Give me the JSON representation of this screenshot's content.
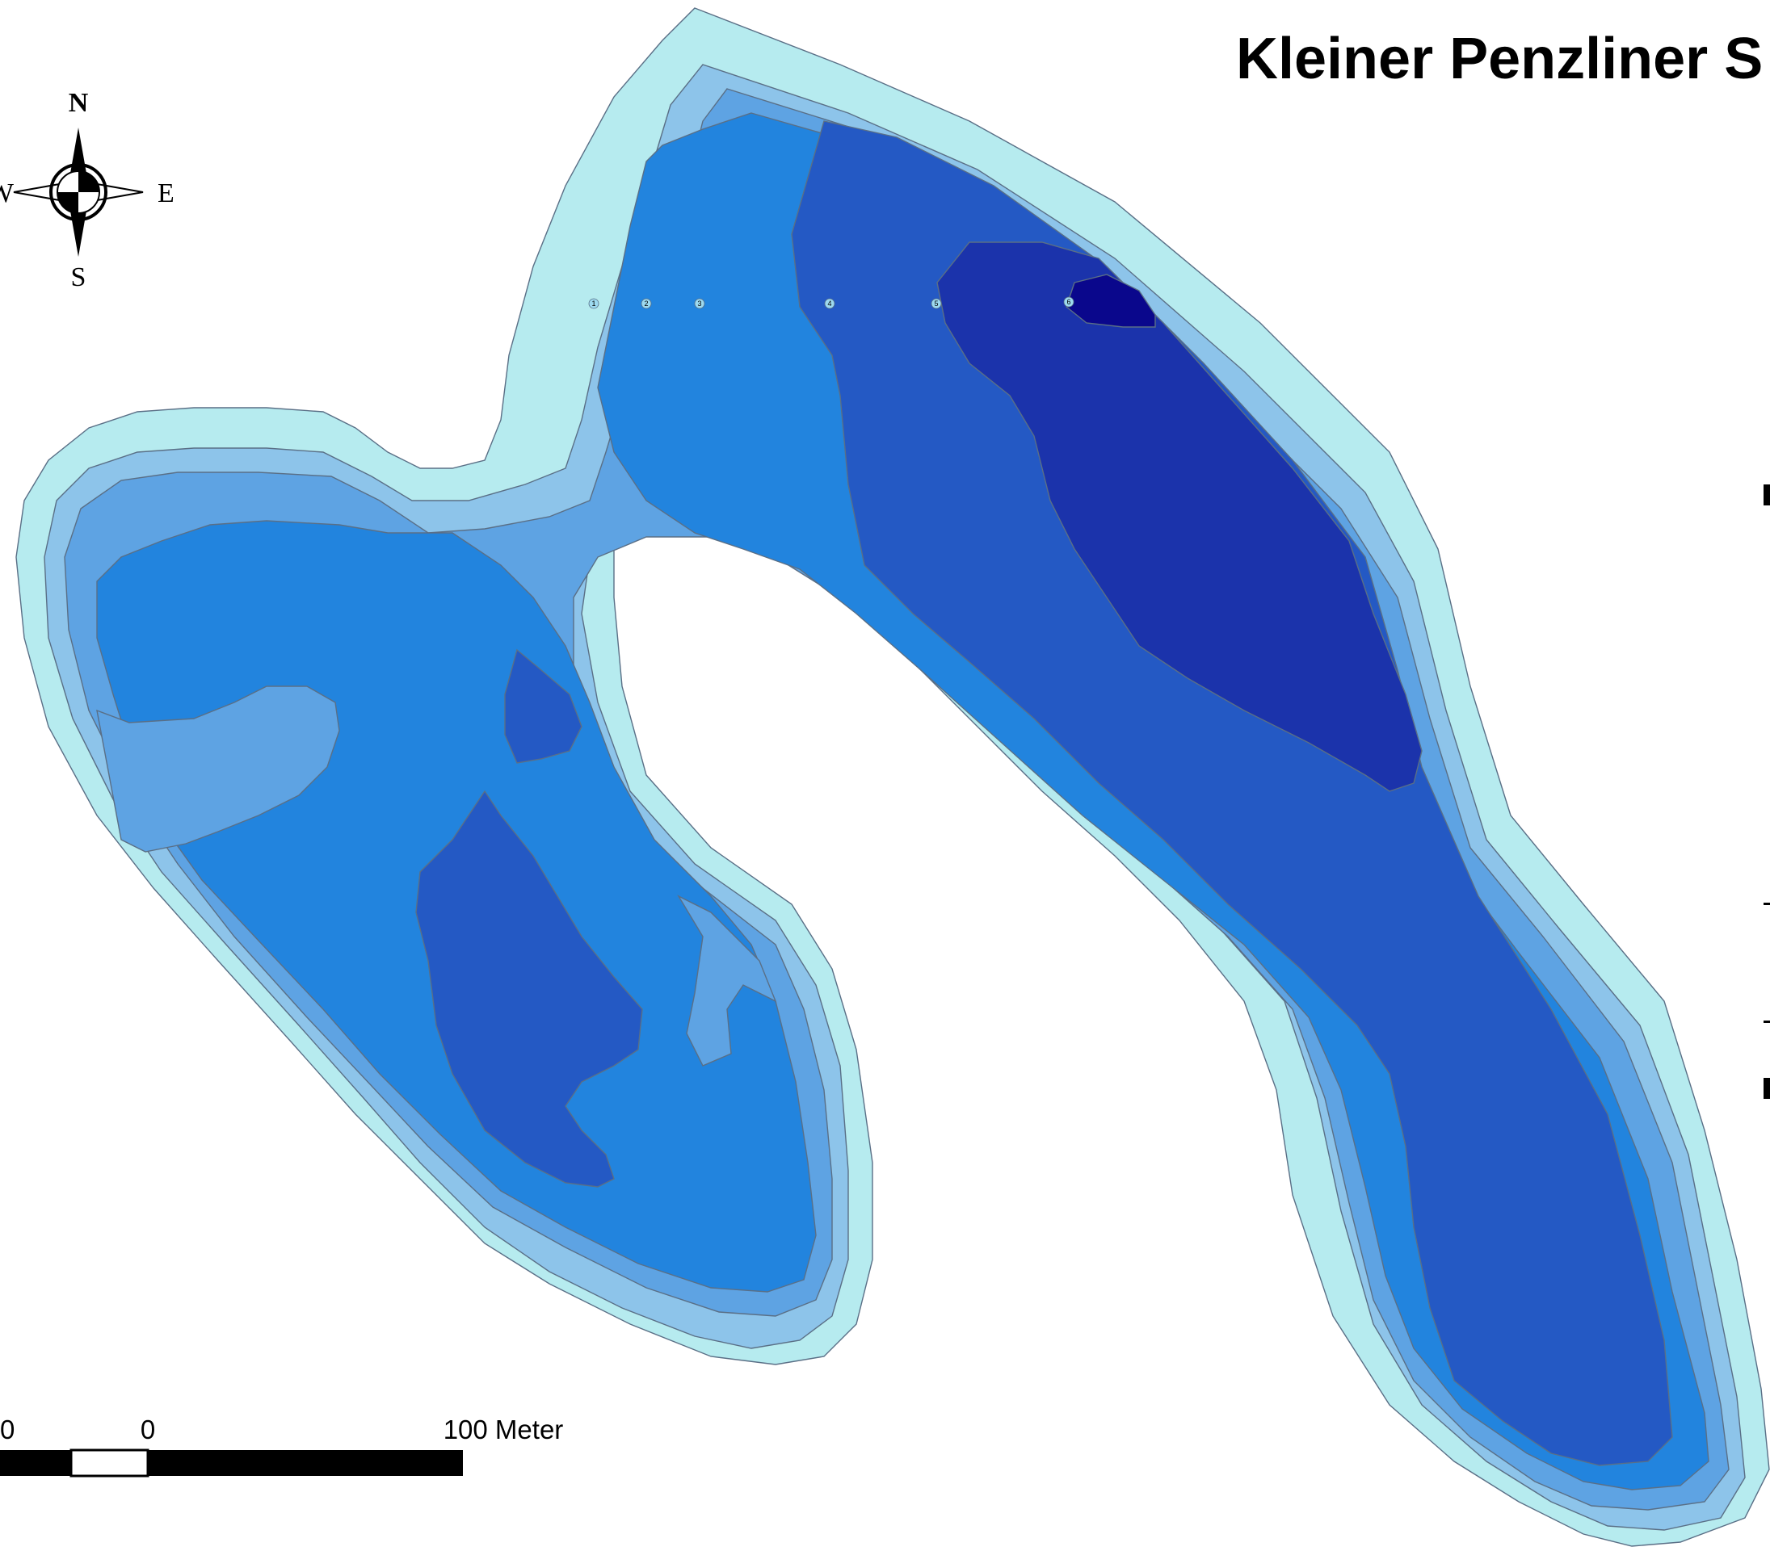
{
  "map": {
    "title": "Kleiner Penzliner S",
    "colors": {
      "depth_0": "#b6ebef",
      "depth_1": "#8dc4ea",
      "depth_2": "#5ea3e3",
      "depth_3": "#2284de",
      "depth_4": "#2459c4",
      "depth_5": "#1b33ab",
      "depth_6": "#0a078c",
      "outline": "#5a6f86"
    },
    "depth_markers": [
      "1",
      "2",
      "3",
      "4",
      "5",
      "6"
    ]
  },
  "compass": {
    "icon": "north-arrow-icon",
    "north": "N",
    "south": "S",
    "east": "E",
    "west": "W"
  },
  "scale_bar": {
    "label_left": "0",
    "label_zero": "0",
    "label_right": "100 Meter"
  }
}
